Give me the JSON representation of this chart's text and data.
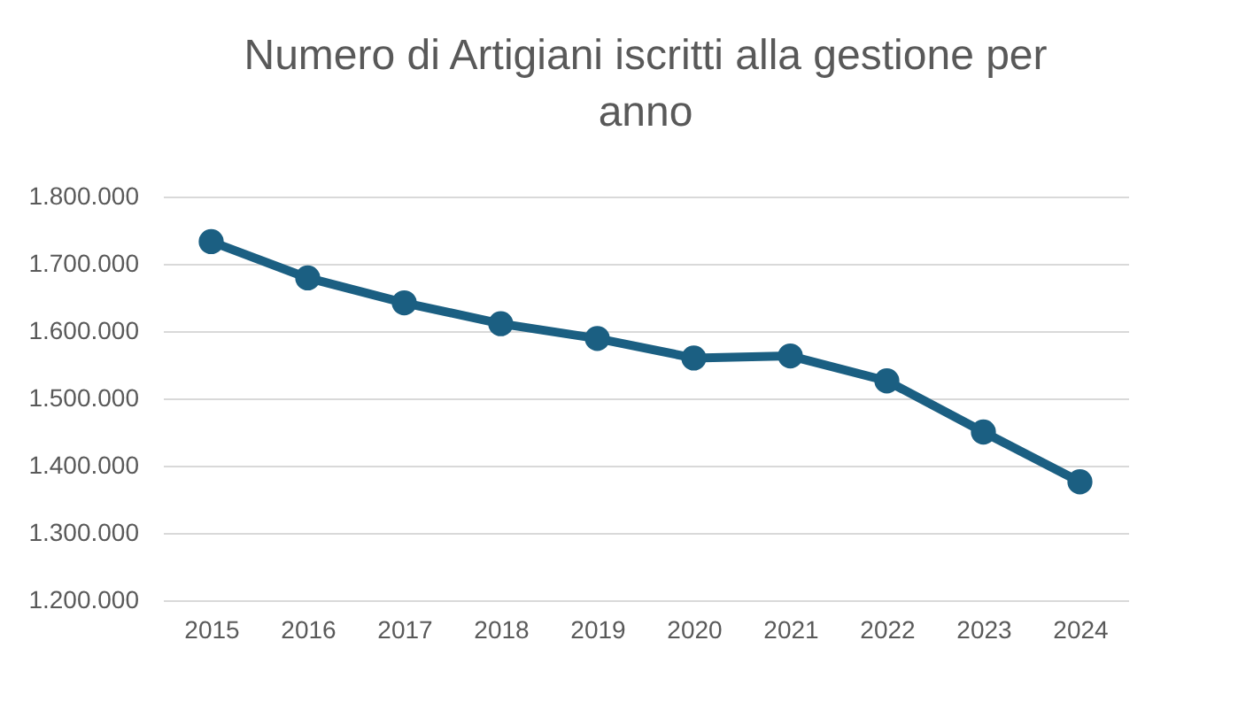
{
  "chart_data": {
    "type": "line",
    "title": "Numero di Artigiani iscritti alla gestione per anno",
    "categories": [
      "2015",
      "2016",
      "2017",
      "2018",
      "2019",
      "2020",
      "2021",
      "2022",
      "2023",
      "2024"
    ],
    "series": [
      {
        "color": "#1b5f82",
        "values": [
          1733000,
          1679000,
          1642000,
          1611000,
          1589000,
          1560000,
          1563000,
          1526000,
          1450000,
          1376000
        ]
      }
    ],
    "ylim": [
      1200000,
      1800000
    ],
    "yticks": [
      {
        "value": 1200000,
        "label": "1.200.000"
      },
      {
        "value": 1300000,
        "label": "1.300.000"
      },
      {
        "value": 1400000,
        "label": "1.400.000"
      },
      {
        "value": 1500000,
        "label": "1.500.000"
      },
      {
        "value": 1600000,
        "label": "1.600.000"
      },
      {
        "value": 1700000,
        "label": "1.700.000"
      },
      {
        "value": 1800000,
        "label": "1.800.000"
      }
    ],
    "grid": "y",
    "legend": false,
    "marker": "circle",
    "line_style": "solid"
  }
}
